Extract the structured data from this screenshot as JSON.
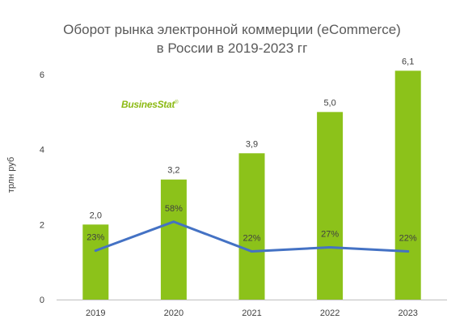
{
  "title_line1": "Оборот рынка электронной коммерции (eCommerce)",
  "title_line2": "в России в 2019-2023 гг",
  "logo_text": "BusinesStat",
  "logo_mark": "®",
  "colors": {
    "bar": "#8cc21a",
    "line": "#4472c4",
    "axis": "#bfbfbf",
    "text": "#404040"
  },
  "chart_data": {
    "type": "bar",
    "categories": [
      "2019",
      "2020",
      "2021",
      "2022",
      "2023"
    ],
    "series": [
      {
        "name": "",
        "type": "bar",
        "values": [
          2.0,
          3.2,
          3.9,
          5.0,
          6.1
        ],
        "labels": [
          "2,0",
          "3,2",
          "3,9",
          "5,0",
          "6,1"
        ]
      },
      {
        "name": "",
        "type": "line",
        "values": [
          23,
          58,
          22,
          27,
          22
        ],
        "labels": [
          "23%",
          "58%",
          "22%",
          "27%",
          "22%"
        ]
      }
    ],
    "ylabel": "трлн руб",
    "ylim": [
      0,
      6
    ],
    "yticks": [
      "0",
      "2",
      "4",
      "6"
    ],
    "grid": false,
    "legend": "none"
  }
}
